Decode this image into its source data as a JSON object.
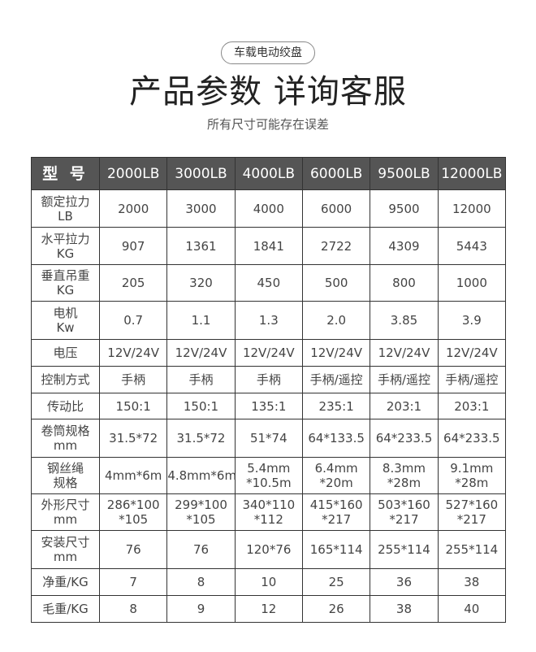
{
  "tag": "车载电动绞盘",
  "title": "产品参数 详询客服",
  "subtitle": "所有尺寸可能存在误差",
  "table": {
    "header": [
      "型 号",
      "2000LB",
      "3000LB",
      "4000LB",
      "6000LB",
      "9500LB",
      "12000LB"
    ],
    "rows": [
      {
        "label": [
          "额定拉力",
          "LB"
        ],
        "cells": [
          [
            "2000"
          ],
          [
            "3000"
          ],
          [
            "4000"
          ],
          [
            "6000"
          ],
          [
            "9500"
          ],
          [
            "12000"
          ]
        ]
      },
      {
        "label": [
          "水平拉力",
          "KG"
        ],
        "cells": [
          [
            "907"
          ],
          [
            "1361"
          ],
          [
            "1841"
          ],
          [
            "2722"
          ],
          [
            "4309"
          ],
          [
            "5443"
          ]
        ]
      },
      {
        "label": [
          "垂直吊重",
          "KG"
        ],
        "cells": [
          [
            "205"
          ],
          [
            "320"
          ],
          [
            "450"
          ],
          [
            "500"
          ],
          [
            "800"
          ],
          [
            "1000"
          ]
        ]
      },
      {
        "label": [
          "电机",
          "Kw"
        ],
        "cells": [
          [
            "0.7"
          ],
          [
            "1.1"
          ],
          [
            "1.3"
          ],
          [
            "2.0"
          ],
          [
            "3.85"
          ],
          [
            "3.9"
          ]
        ]
      },
      {
        "label": [
          "电压"
        ],
        "cells": [
          [
            "12V/24V"
          ],
          [
            "12V/24V"
          ],
          [
            "12V/24V"
          ],
          [
            "12V/24V"
          ],
          [
            "12V/24V"
          ],
          [
            "12V/24V"
          ]
        ]
      },
      {
        "label": [
          "控制方式"
        ],
        "cells": [
          [
            "手柄"
          ],
          [
            "手柄"
          ],
          [
            "手柄"
          ],
          [
            "手柄/遥控"
          ],
          [
            "手柄/遥控"
          ],
          [
            "手柄/遥控"
          ]
        ]
      },
      {
        "label": [
          "传动比"
        ],
        "cells": [
          [
            "150:1"
          ],
          [
            "150:1"
          ],
          [
            "135:1"
          ],
          [
            "235:1"
          ],
          [
            "203:1"
          ],
          [
            "203:1"
          ]
        ]
      },
      {
        "label": [
          "卷筒规格",
          "mm"
        ],
        "cells": [
          [
            "31.5*72"
          ],
          [
            "31.5*72"
          ],
          [
            "51*74"
          ],
          [
            "64*133.5"
          ],
          [
            "64*233.5"
          ],
          [
            "64*233.5"
          ]
        ]
      },
      {
        "label": [
          "钢丝绳",
          "规格"
        ],
        "cells": [
          [
            "4mm*6m"
          ],
          [
            "4.8mm*6m"
          ],
          [
            "5.4mm",
            "*10.5m"
          ],
          [
            "6.4mm",
            "*20m"
          ],
          [
            "8.3mm",
            "*28m"
          ],
          [
            "9.1mm",
            "*28m"
          ]
        ]
      },
      {
        "label": [
          "外形尺寸",
          "mm"
        ],
        "cells": [
          [
            "286*100",
            "*105"
          ],
          [
            "299*100",
            "*105"
          ],
          [
            "340*110",
            "*112"
          ],
          [
            "415*160",
            "*217"
          ],
          [
            "503*160",
            "*217"
          ],
          [
            "527*160",
            "*217"
          ]
        ]
      },
      {
        "label": [
          "安装尺寸",
          "mm"
        ],
        "cells": [
          [
            "76"
          ],
          [
            "76"
          ],
          [
            "120*76"
          ],
          [
            "165*114"
          ],
          [
            "255*114"
          ],
          [
            "255*114"
          ]
        ]
      },
      {
        "label": [
          "净重/KG"
        ],
        "cells": [
          [
            "7"
          ],
          [
            "8"
          ],
          [
            "10"
          ],
          [
            "25"
          ],
          [
            "36"
          ],
          [
            "38"
          ]
        ]
      },
      {
        "label": [
          "毛重/KG"
        ],
        "cells": [
          [
            "8"
          ],
          [
            "9"
          ],
          [
            "12"
          ],
          [
            "26"
          ],
          [
            "38"
          ],
          [
            "40"
          ]
        ]
      }
    ]
  }
}
